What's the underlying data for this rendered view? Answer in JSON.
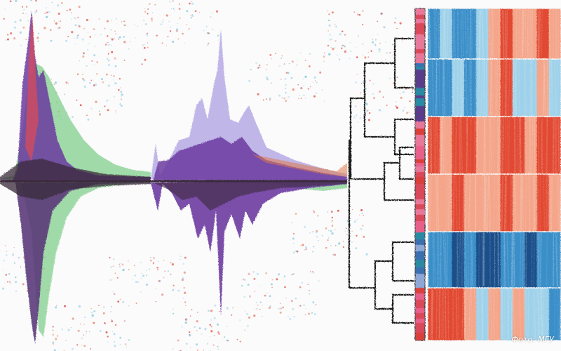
{
  "photo_credit": "Фото: МГУ",
  "colors": {
    "background": "#fbfbfb",
    "waveform_green": "#8fd39a",
    "waveform_purple": "#6b3aa0",
    "waveform_lavender": "#b9aee6",
    "waveform_dark": "#3a2a3a",
    "waveform_red": "#d94a5a",
    "dendrogram_line": "#1b1b1b",
    "heat_red": "#e24a33",
    "heat_lightred": "#f4a58a",
    "heat_blue": "#3b8fc9",
    "heat_lightblue": "#9fd2ea",
    "heat_darkblue": "#1a4f8a"
  },
  "heatmap": {
    "row_groups": [
      "light-blue",
      "light-blue-mixed",
      "red",
      "light-red",
      "dark-blue",
      "red-mixed"
    ],
    "sidebar_palette": [
      "#d94a5a",
      "#e8789a",
      "#2a8aa3",
      "#5a3d8a",
      "#e8608a",
      "#d9403a",
      "#3a6fb0",
      "#8da7d6"
    ]
  }
}
